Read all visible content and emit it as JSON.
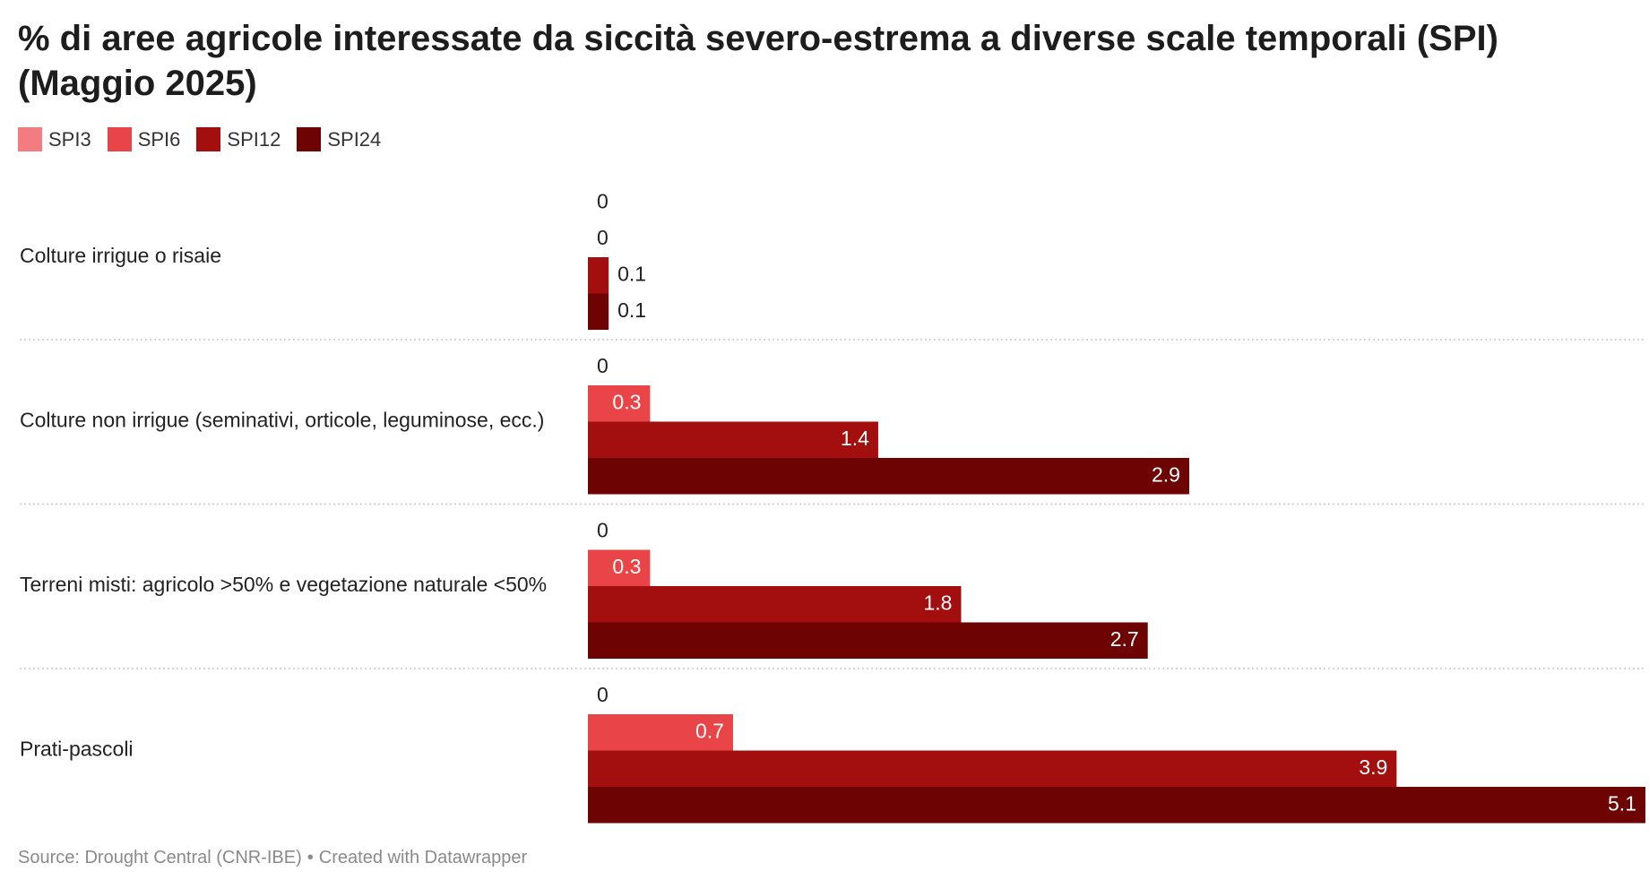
{
  "title": "% di aree agricole interessate da siccità severo-estrema a diverse scale temporali (SPI) (Maggio 2025)",
  "chart_data": {
    "type": "bar",
    "orientation": "horizontal",
    "categories": [
      "Colture irrigue o risaie",
      "Colture non irrigue (seminativi, orticole, leguminose, ecc.)",
      "Terreni misti: agricolo >50% e vegetazione naturale <50%",
      "Prati-pascoli"
    ],
    "series": [
      {
        "name": "SPI3",
        "color": "#f27c7f",
        "values": [
          0,
          0,
          0,
          0
        ]
      },
      {
        "name": "SPI6",
        "color": "#e94548",
        "values": [
          0,
          0.3,
          0.3,
          0.7
        ]
      },
      {
        "name": "SPI12",
        "color": "#a30e0e",
        "values": [
          0.1,
          1.4,
          1.8,
          3.9
        ]
      },
      {
        "name": "SPI24",
        "color": "#6e0303",
        "values": [
          0.1,
          2.9,
          2.7,
          5.1
        ]
      }
    ],
    "xlim": [
      0,
      5.1
    ],
    "legend_position": "top-left",
    "grid": false
  },
  "footer": {
    "source": "Source: Drought Central (CNR-IBE)",
    "separator": "•",
    "credit": "Created with Datawrapper"
  }
}
